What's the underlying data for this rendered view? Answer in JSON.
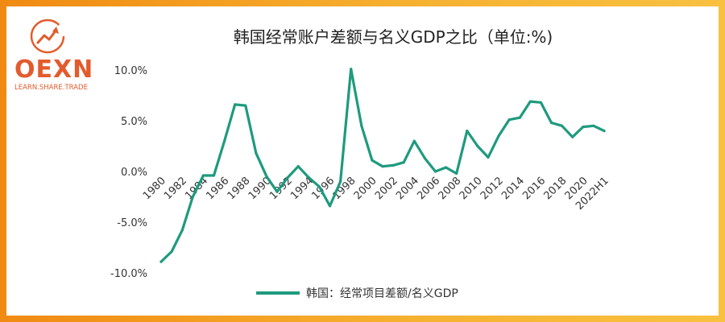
{
  "logo": {
    "word": "OEXN",
    "tagline": "LEARN.SHARE.TRADE"
  },
  "colors": {
    "brand": "#e35b2c",
    "series": "#1f9a7e",
    "border_left": "#f08a12",
    "border_right": "#f9c140"
  },
  "chart_data": {
    "type": "line",
    "title": "韩国经常账户差额与名义GDP之比（单位:%)",
    "xlabel": "",
    "ylabel": "",
    "ylim": [
      -10,
      10
    ],
    "yticks": [
      10,
      5,
      0,
      -5,
      -10
    ],
    "ytick_labels": [
      "10.0%",
      "5.0%",
      "0.0%",
      "-5.0%",
      "-10.0%"
    ],
    "xtick_labels": [
      "1980",
      "1982",
      "1984",
      "1986",
      "1988",
      "1990",
      "1992",
      "1994",
      "1996",
      "1998",
      "2000",
      "2002",
      "2004",
      "2006",
      "2008",
      "2010",
      "2012",
      "2014",
      "2016",
      "2018",
      "2020",
      "2022H1"
    ],
    "x": [
      "1980",
      "1981",
      "1982",
      "1983",
      "1984",
      "1985",
      "1986",
      "1987",
      "1988",
      "1989",
      "1990",
      "1991",
      "1992",
      "1993",
      "1994",
      "1995",
      "1996",
      "1997",
      "1998",
      "1999",
      "2000",
      "2001",
      "2002",
      "2003",
      "2004",
      "2005",
      "2006",
      "2007",
      "2008",
      "2009",
      "2010",
      "2011",
      "2012",
      "2013",
      "2014",
      "2015",
      "2016",
      "2017",
      "2018",
      "2019",
      "2020",
      "2021",
      "2022H1"
    ],
    "series": [
      {
        "name": "韩国：经常项目差额/名义GDP",
        "values": [
          -8.9,
          -7.9,
          -5.8,
          -2.5,
          -0.4,
          -0.4,
          3.0,
          6.6,
          6.5,
          1.8,
          -0.5,
          -2.0,
          -0.6,
          0.5,
          -0.6,
          -1.5,
          -3.4,
          -1.0,
          10.1,
          4.5,
          1.1,
          0.5,
          0.6,
          0.9,
          3.0,
          1.3,
          0.0,
          0.4,
          -0.2,
          4.0,
          2.5,
          1.4,
          3.5,
          5.1,
          5.3,
          6.9,
          6.8,
          4.8,
          4.5,
          3.4,
          4.4,
          4.5,
          4.0
        ]
      }
    ],
    "grid": false,
    "legend": "bottom"
  }
}
